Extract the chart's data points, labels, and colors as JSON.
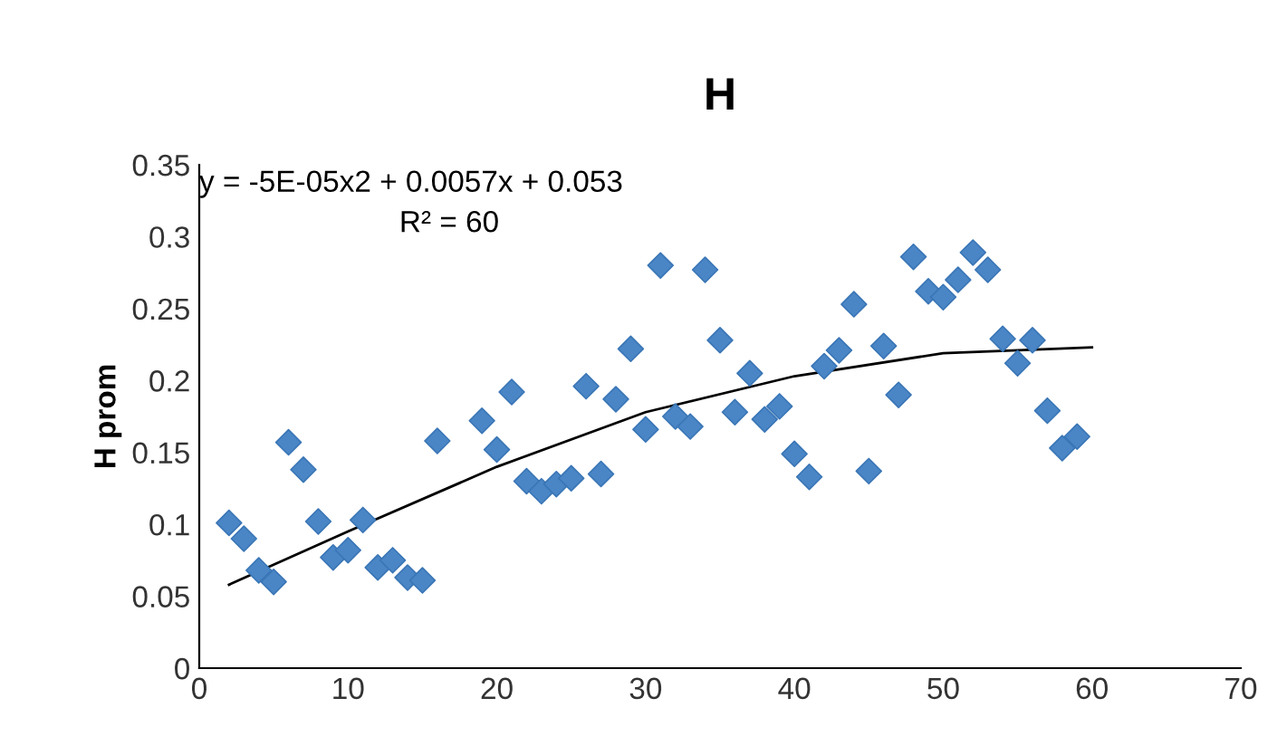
{
  "chart_data": {
    "type": "scatter",
    "title": "H",
    "ylabel": "H prom",
    "annotations": [
      "y = -5E-05x2 + 0.0057x + 0.053",
      "R² = 60"
    ],
    "xlim": [
      0,
      70
    ],
    "xticks": [
      0,
      10,
      20,
      30,
      40,
      50,
      60,
      70
    ],
    "ylim": [
      0,
      0.35
    ],
    "yticks": [
      0,
      0.05,
      0.1,
      0.15,
      0.2,
      0.25,
      0.3,
      0.35
    ],
    "grid": false,
    "legend": false,
    "marker": "diamond",
    "series": [
      {
        "color": "#4a86c6",
        "x": [
          2,
          3,
          4,
          5,
          6,
          7,
          8,
          9,
          10,
          11,
          12,
          13,
          14,
          15,
          16,
          19,
          20,
          21,
          22,
          23,
          24,
          25,
          26,
          27,
          28,
          29,
          30,
          31,
          32,
          33,
          34,
          35,
          36,
          37,
          38,
          39,
          40,
          41,
          42,
          43,
          44,
          45,
          46,
          47,
          48,
          49,
          50,
          51,
          52,
          53,
          54,
          55,
          56,
          57,
          58,
          59
        ],
        "values": [
          0.101,
          0.09,
          0.068,
          0.06,
          0.157,
          0.138,
          0.102,
          0.077,
          0.082,
          0.103,
          0.07,
          0.075,
          0.063,
          0.061,
          0.158,
          0.172,
          0.152,
          0.192,
          0.13,
          0.123,
          0.128,
          0.132,
          0.196,
          0.135,
          0.187,
          0.222,
          0.166,
          0.28,
          0.175,
          0.168,
          0.277,
          0.228,
          0.178,
          0.205,
          0.173,
          0.182,
          0.149,
          0.133,
          0.21,
          0.221,
          0.253,
          0.137,
          0.224,
          0.19,
          0.286,
          0.262,
          0.258,
          0.27,
          0.289,
          0.277,
          0.229,
          0.212,
          0.228,
          0.179,
          0.153,
          0.161
        ]
      },
      {
        "type": "line",
        "color": "#000000",
        "marker": "none",
        "line_style": "solid",
        "x": [
          2,
          10,
          20,
          30,
          40,
          50,
          60
        ],
        "values": [
          0.058,
          0.095,
          0.14,
          0.178,
          0.203,
          0.219,
          0.223
        ]
      }
    ]
  }
}
